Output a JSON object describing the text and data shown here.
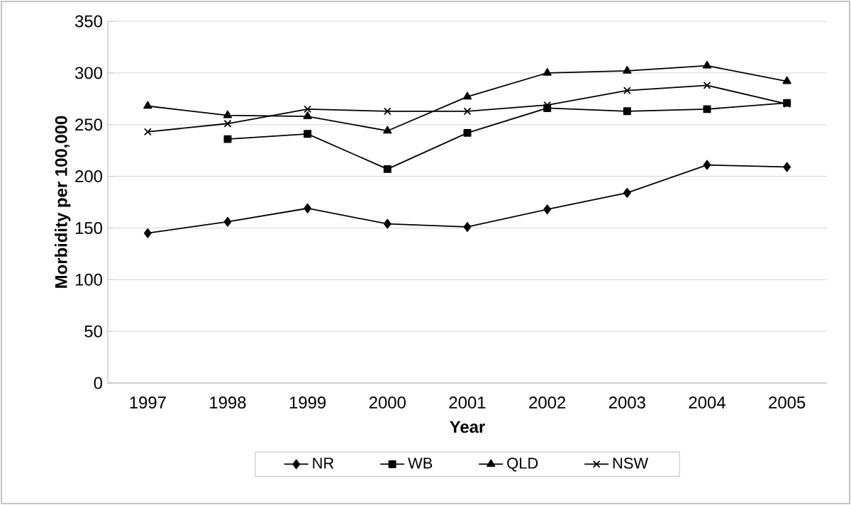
{
  "chart_data": {
    "type": "line",
    "xlabel": "Year",
    "ylabel": "Morbidity per 100,000",
    "categories": [
      "1997",
      "1998",
      "1999",
      "2000",
      "2001",
      "2002",
      "2003",
      "2004",
      "2005"
    ],
    "series": [
      {
        "name": "NR",
        "color": "#000000",
        "marker": "diamond",
        "values": [
          145,
          156,
          169,
          154,
          151,
          168,
          184,
          211,
          209
        ]
      },
      {
        "name": "WB",
        "color": "#000000",
        "marker": "square",
        "values": [
          null,
          236,
          241,
          207,
          242,
          266,
          263,
          265,
          271
        ]
      },
      {
        "name": "QLD",
        "color": "#000000",
        "marker": "triangle",
        "values": [
          268,
          259,
          258,
          244,
          277,
          300,
          302,
          307,
          292
        ]
      },
      {
        "name": "NSW",
        "color": "#000000",
        "marker": "cross",
        "values": [
          243,
          251,
          265,
          263,
          263,
          269,
          283,
          288,
          270
        ]
      }
    ],
    "ylim": [
      0,
      350
    ],
    "yticks": [
      0,
      50,
      100,
      150,
      200,
      250,
      300,
      350
    ],
    "grid": "y",
    "legend": "bottom"
  }
}
